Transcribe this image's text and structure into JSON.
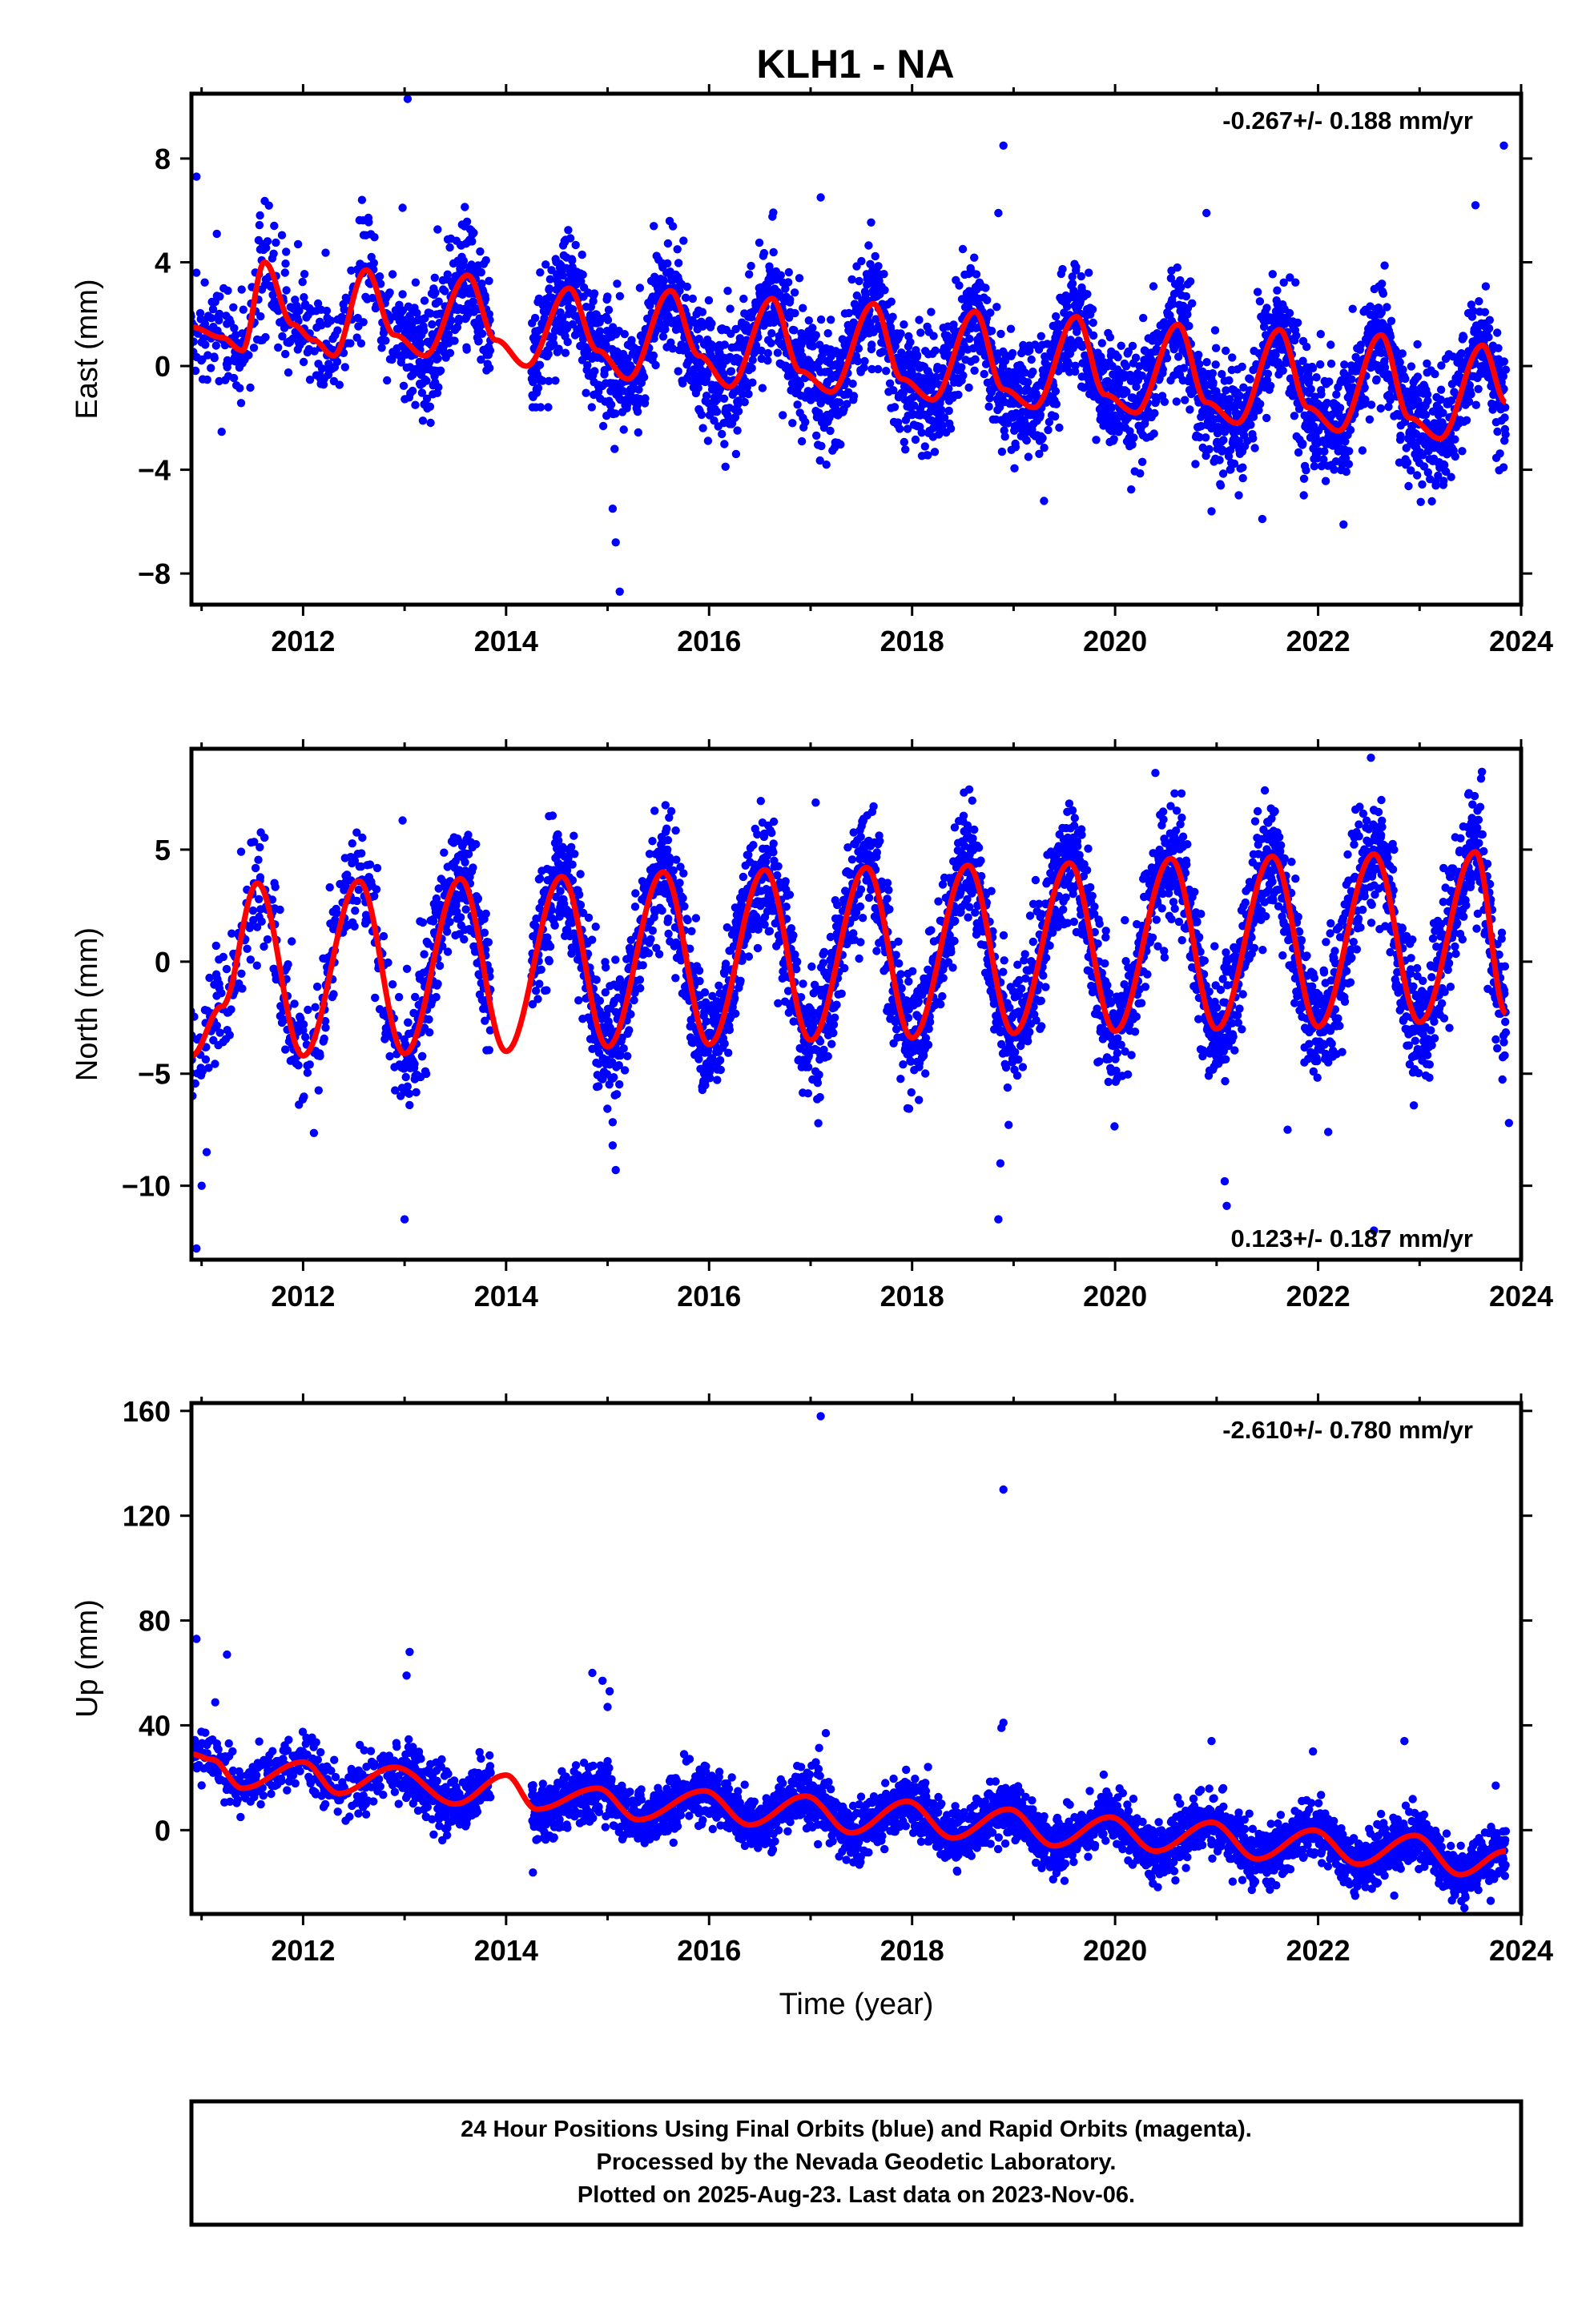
{
  "title": "KLH1 - NA",
  "colors": {
    "points": "#0000ff",
    "model": "#ff0000",
    "frame": "#000000"
  },
  "footer": {
    "lines": [
      "24 Hour Positions Using Final Orbits (blue) and Rapid Orbits (magenta).",
      "Processed by the Nevada Geodetic Laboratory.",
      "Plotted on 2025-Aug-23. Last data on 2023-Nov-06."
    ]
  },
  "chart_data": [
    {
      "type": "scatter",
      "component": "east",
      "ylabel": "East (mm)",
      "xlabel": "",
      "xlim": [
        2010.9,
        2024.0
      ],
      "ylim": [
        -9.2,
        10.5
      ],
      "xticks": [
        2012,
        2014,
        2016,
        2018,
        2020,
        2022,
        2024
      ],
      "yticks": [
        -8,
        -4,
        0,
        4,
        8
      ],
      "ytick_labels": [
        "−8",
        "−4",
        "0",
        "4",
        "8"
      ],
      "rate_label": "-0.267+/- 0.188 mm/yr",
      "rate_position": "top-right",
      "data_span": [
        2010.85,
        2023.85
      ],
      "trend_mm_per_yr": -0.267,
      "offset_mm": 0.6,
      "annual_amplitude_mm": 1.7,
      "annual_peak_year_fraction": 0.62,
      "scatter_sigma_mm": 1.1,
      "data_gap": [
        2013.85,
        2014.25
      ],
      "model_curve": [
        [
          2010.9,
          1.5
        ],
        [
          2011.2,
          1.1
        ],
        [
          2011.4,
          0.6
        ],
        [
          2011.62,
          4.0
        ],
        [
          2011.9,
          1.6
        ],
        [
          2012.1,
          1.0
        ],
        [
          2012.3,
          0.4
        ],
        [
          2012.62,
          3.7
        ],
        [
          2012.9,
          1.2
        ],
        [
          2013.2,
          0.4
        ],
        [
          2013.62,
          3.5
        ],
        [
          2013.9,
          1.0
        ],
        [
          2014.2,
          0.0
        ],
        [
          2014.62,
          3.0
        ],
        [
          2014.9,
          0.6
        ],
        [
          2015.2,
          -0.5
        ],
        [
          2015.62,
          2.9
        ],
        [
          2015.9,
          0.4
        ],
        [
          2016.2,
          -0.8
        ],
        [
          2016.62,
          2.6
        ],
        [
          2016.9,
          -0.2
        ],
        [
          2017.2,
          -1.0
        ],
        [
          2017.62,
          2.4
        ],
        [
          2017.9,
          -0.5
        ],
        [
          2018.2,
          -1.3
        ],
        [
          2018.62,
          2.1
        ],
        [
          2018.9,
          -0.9
        ],
        [
          2019.2,
          -1.6
        ],
        [
          2019.62,
          1.9
        ],
        [
          2019.9,
          -1.1
        ],
        [
          2020.2,
          -1.8
        ],
        [
          2020.62,
          1.6
        ],
        [
          2020.9,
          -1.4
        ],
        [
          2021.2,
          -2.2
        ],
        [
          2021.62,
          1.4
        ],
        [
          2021.9,
          -1.6
        ],
        [
          2022.2,
          -2.5
        ],
        [
          2022.62,
          1.2
        ],
        [
          2022.9,
          -2.0
        ],
        [
          2023.2,
          -2.8
        ],
        [
          2023.62,
          0.8
        ],
        [
          2023.85,
          -1.4
        ]
      ],
      "outliers": [
        [
          2010.95,
          7.3
        ],
        [
          2011.15,
          5.1
        ],
        [
          2013.03,
          10.3
        ],
        [
          2012.98,
          6.1
        ],
        [
          2015.12,
          -8.7
        ],
        [
          2015.08,
          -6.8
        ],
        [
          2015.05,
          -5.5
        ],
        [
          2018.9,
          8.5
        ],
        [
          2018.85,
          5.9
        ],
        [
          2017.1,
          6.5
        ],
        [
          2023.83,
          8.5
        ],
        [
          2023.55,
          6.2
        ],
        [
          2020.9,
          5.9
        ],
        [
          2021.45,
          -5.9
        ],
        [
          2020.95,
          -5.6
        ],
        [
          2019.3,
          -5.2
        ]
      ]
    },
    {
      "type": "scatter",
      "component": "north",
      "ylabel": "North (mm)",
      "xlabel": "",
      "xlim": [
        2010.9,
        2024.0
      ],
      "ylim": [
        -13.3,
        9.5
      ],
      "xticks": [
        2012,
        2014,
        2016,
        2018,
        2020,
        2022,
        2024
      ],
      "yticks": [
        -10,
        -5,
        0,
        5
      ],
      "ytick_labels": [
        "−10",
        "−5",
        "0",
        "5"
      ],
      "rate_label": "0.123+/- 0.187 mm/yr",
      "rate_position": "bottom-right",
      "data_span": [
        2010.85,
        2023.85
      ],
      "trend_mm_per_yr": 0.123,
      "offset_mm": -0.3,
      "annual_amplitude_mm": 3.9,
      "annual_peak_year_fraction": 0.55,
      "scatter_sigma_mm": 1.3,
      "data_gap": [
        2013.85,
        2014.25
      ],
      "model_curve": [
        [
          2010.9,
          -4.2
        ],
        [
          2011.2,
          -2.0
        ],
        [
          2011.55,
          3.5
        ],
        [
          2012.0,
          -4.2
        ],
        [
          2012.55,
          3.6
        ],
        [
          2013.0,
          -4.1
        ],
        [
          2013.55,
          3.7
        ],
        [
          2014.0,
          -4.0
        ],
        [
          2014.55,
          3.8
        ],
        [
          2015.0,
          -3.8
        ],
        [
          2015.55,
          4.0
        ],
        [
          2016.0,
          -3.7
        ],
        [
          2016.55,
          4.1
        ],
        [
          2017.0,
          -3.5
        ],
        [
          2017.55,
          4.2
        ],
        [
          2018.0,
          -3.4
        ],
        [
          2018.55,
          4.3
        ],
        [
          2019.0,
          -3.2
        ],
        [
          2019.55,
          4.4
        ],
        [
          2020.0,
          -3.1
        ],
        [
          2020.55,
          4.6
        ],
        [
          2021.0,
          -3.0
        ],
        [
          2021.55,
          4.7
        ],
        [
          2022.0,
          -2.9
        ],
        [
          2022.55,
          4.8
        ],
        [
          2023.0,
          -2.7
        ],
        [
          2023.55,
          4.9
        ],
        [
          2023.85,
          -2.3
        ]
      ],
      "outliers": [
        [
          2010.95,
          -12.8
        ],
        [
          2011.0,
          -10.0
        ],
        [
          2011.05,
          -8.5
        ],
        [
          2013.0,
          -11.5
        ],
        [
          2012.98,
          6.3
        ],
        [
          2015.08,
          -9.3
        ],
        [
          2015.05,
          -8.2
        ],
        [
          2018.85,
          -11.5
        ],
        [
          2018.87,
          -9.0
        ],
        [
          2021.1,
          -10.9
        ],
        [
          2021.08,
          -9.8
        ],
        [
          2022.52,
          9.1
        ],
        [
          2022.55,
          -12.0
        ],
        [
          2023.88,
          -7.2
        ],
        [
          2017.05,
          7.1
        ],
        [
          2021.7,
          -7.5
        ],
        [
          2022.1,
          -7.6
        ]
      ]
    },
    {
      "type": "scatter",
      "component": "up",
      "ylabel": "Up (mm)",
      "xlabel": "Time (year)",
      "xlim": [
        2010.9,
        2024.0
      ],
      "ylim": [
        -32,
        163
      ],
      "xticks": [
        2012,
        2014,
        2016,
        2018,
        2020,
        2022,
        2024
      ],
      "yticks": [
        0,
        40,
        80,
        120,
        160
      ],
      "ytick_labels": [
        "0",
        "40",
        "80",
        "120",
        "160"
      ],
      "rate_label": "-2.610+/- 0.780 mm/yr",
      "rate_position": "top-right",
      "data_span": [
        2010.85,
        2023.85
      ],
      "trend_mm_per_yr": -2.61,
      "offset_mm": 8,
      "annual_amplitude_mm": 5.5,
      "annual_peak_year_fraction": 0.9,
      "scatter_sigma_mm": 5.0,
      "data_gap": [
        2013.85,
        2014.25
      ],
      "model_curve": [
        [
          2010.9,
          29
        ],
        [
          2011.1,
          27
        ],
        [
          2011.4,
          16
        ],
        [
          2012.0,
          26
        ],
        [
          2012.35,
          14
        ],
        [
          2012.9,
          24
        ],
        [
          2013.5,
          10
        ],
        [
          2014.0,
          21
        ],
        [
          2014.3,
          8
        ],
        [
          2014.9,
          16
        ],
        [
          2015.3,
          4
        ],
        [
          2015.95,
          15
        ],
        [
          2016.4,
          2
        ],
        [
          2016.95,
          13
        ],
        [
          2017.4,
          -1
        ],
        [
          2017.95,
          11
        ],
        [
          2018.4,
          -3
        ],
        [
          2018.95,
          8
        ],
        [
          2019.4,
          -6
        ],
        [
          2019.95,
          5
        ],
        [
          2020.4,
          -8
        ],
        [
          2020.95,
          3
        ],
        [
          2021.4,
          -11
        ],
        [
          2021.95,
          0
        ],
        [
          2022.4,
          -13
        ],
        [
          2022.95,
          -2
        ],
        [
          2023.4,
          -17
        ],
        [
          2023.85,
          -8
        ]
      ],
      "outliers": [
        [
          2017.1,
          158
        ],
        [
          2018.9,
          130
        ],
        [
          2018.9,
          41
        ],
        [
          2018.88,
          39
        ],
        [
          2010.95,
          73
        ],
        [
          2011.25,
          67
        ],
        [
          2013.05,
          68
        ],
        [
          2013.02,
          59
        ],
        [
          2014.85,
          60
        ],
        [
          2014.95,
          57
        ],
        [
          2015.02,
          53
        ],
        [
          2015.0,
          47
        ],
        [
          2017.15,
          37
        ],
        [
          2020.95,
          34
        ],
        [
          2021.95,
          30
        ],
        [
          2022.85,
          34
        ],
        [
          2023.75,
          17
        ],
        [
          2023.7,
          -27
        ],
        [
          2022.75,
          -25
        ]
      ]
    }
  ]
}
